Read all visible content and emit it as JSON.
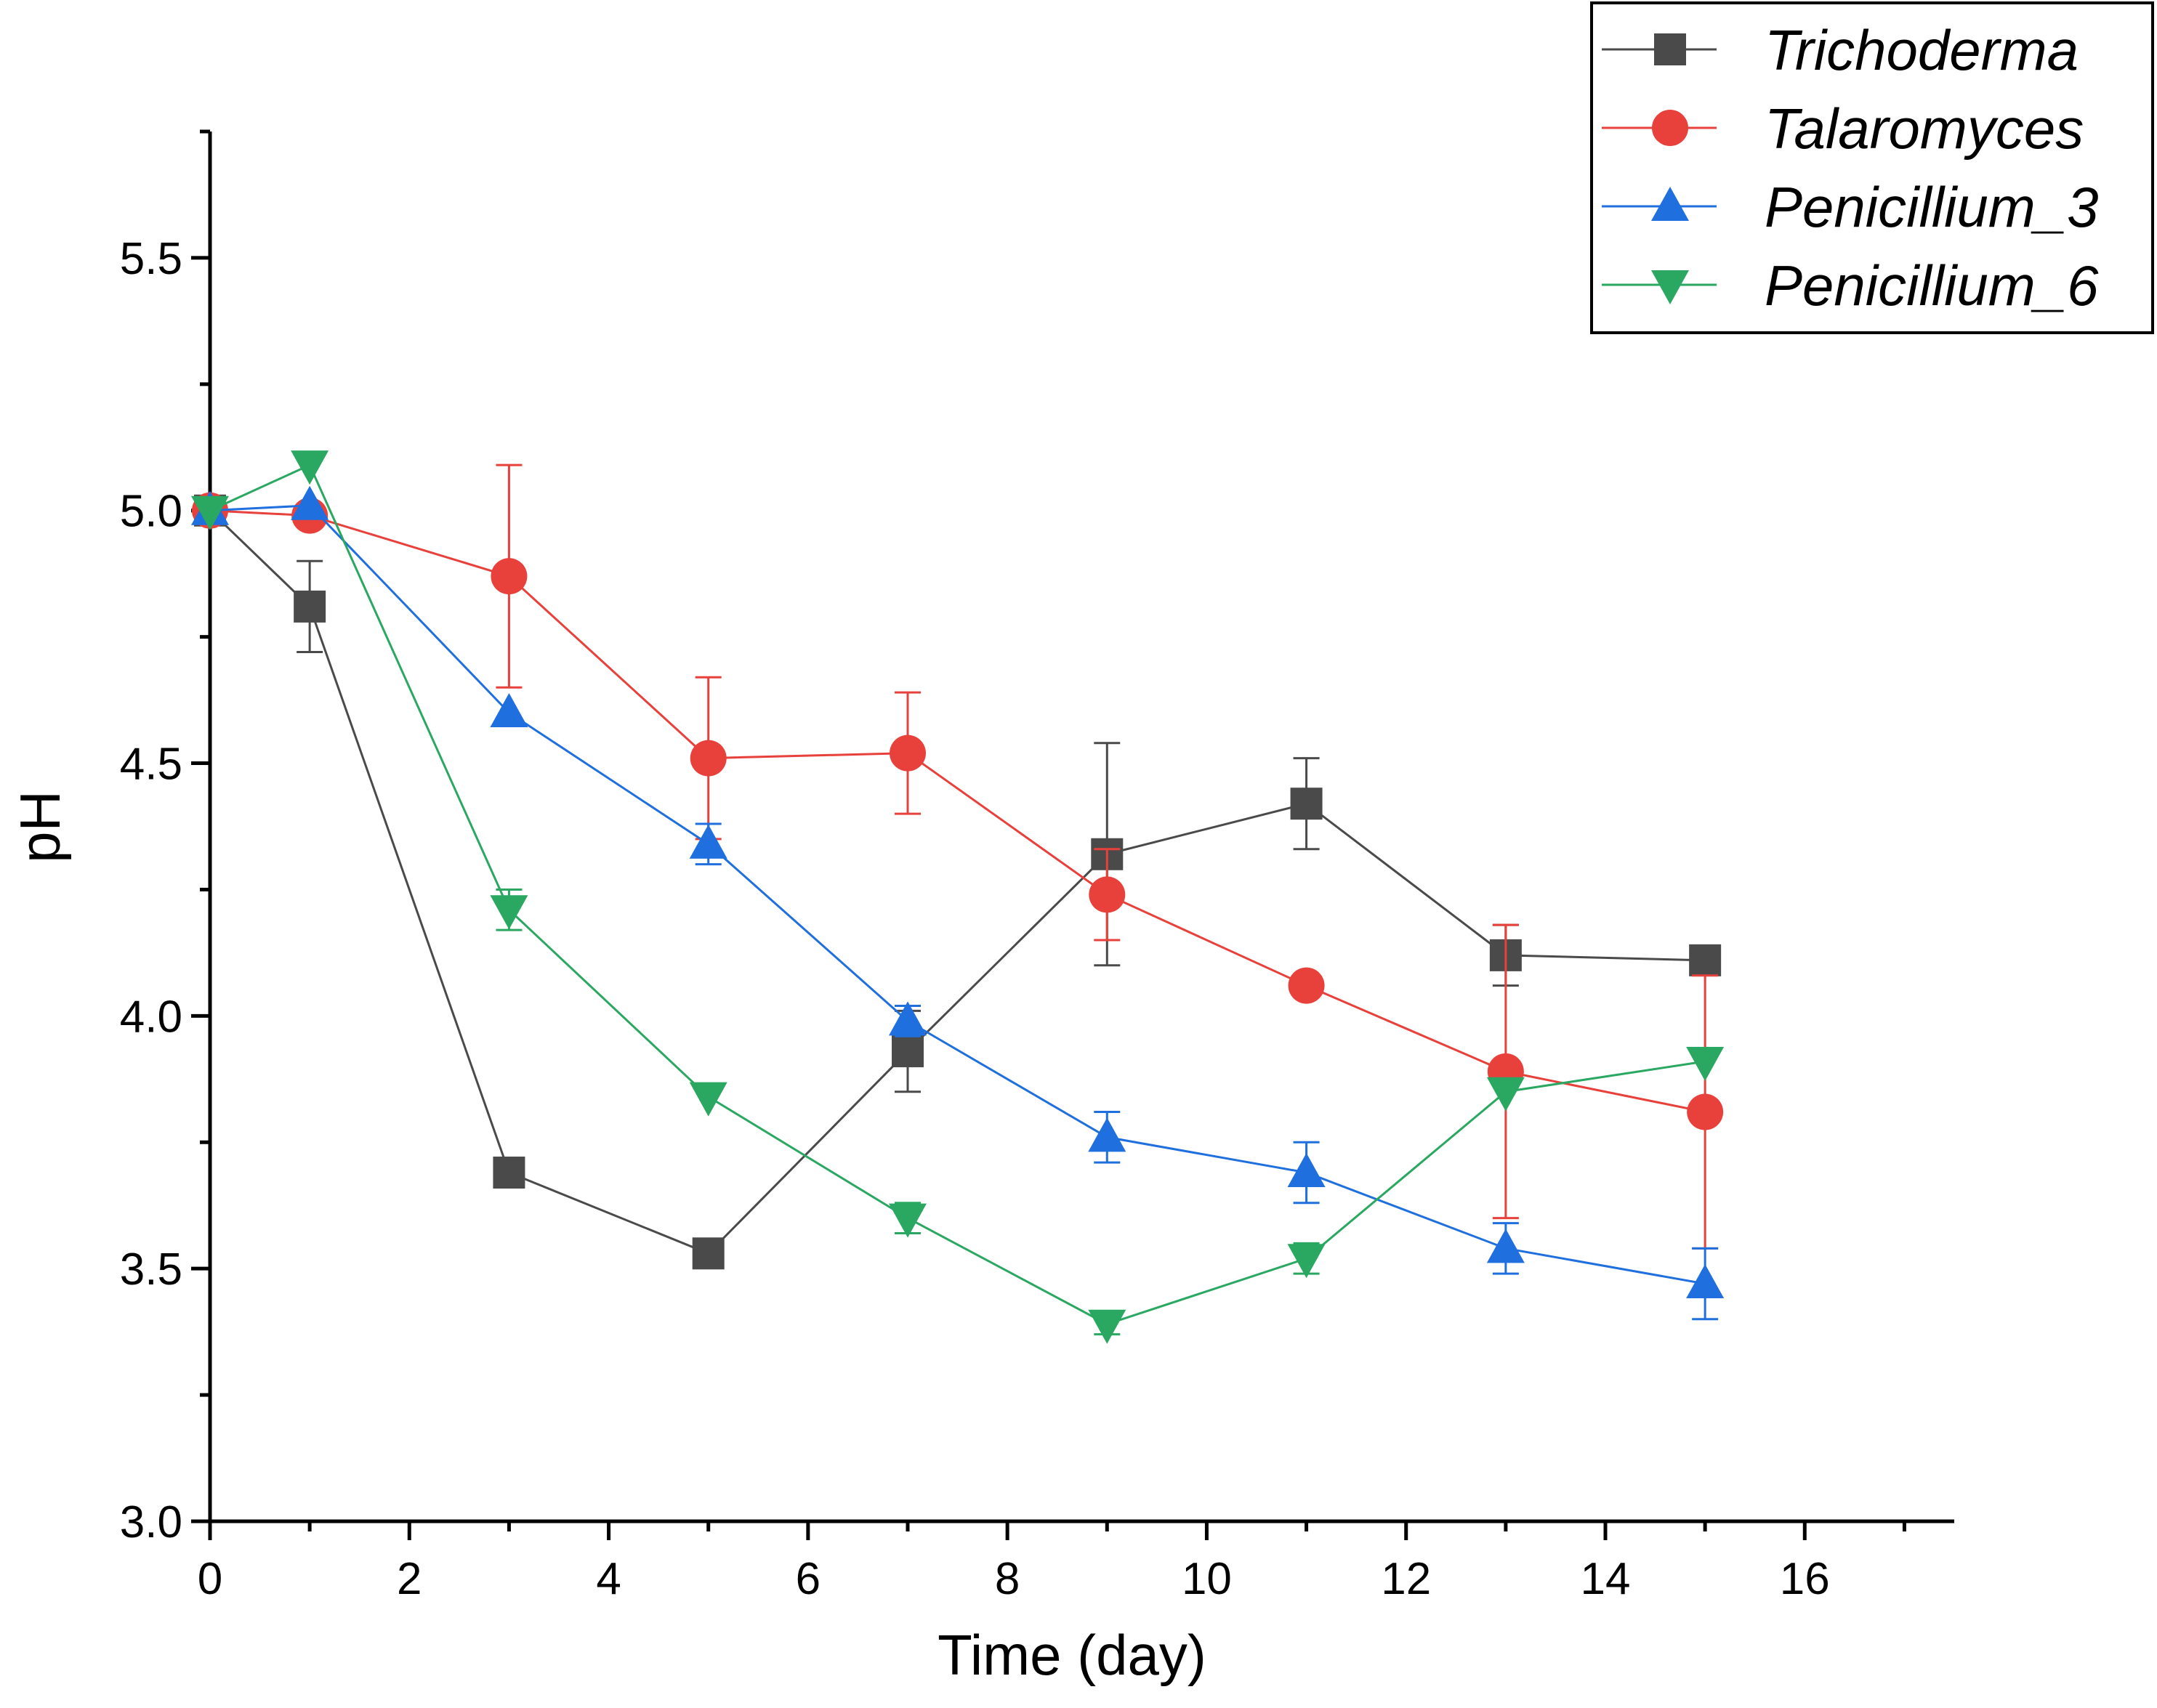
{
  "chart_data": {
    "type": "line",
    "xlabel": "Time (day)",
    "ylabel": "pH",
    "xlim": [
      0,
      17.5
    ],
    "ylim": [
      3.0,
      5.75
    ],
    "x_ticks": [
      0,
      2,
      4,
      6,
      8,
      10,
      12,
      14,
      16
    ],
    "x_tick_labels": [
      "0",
      "2",
      "4",
      "6",
      "8",
      "10",
      "12",
      "14",
      "16"
    ],
    "y_ticks": [
      3.0,
      3.5,
      4.0,
      4.5,
      5.0,
      5.5
    ],
    "y_tick_labels": [
      "3.0",
      "3.5",
      "4.0",
      "4.5",
      "5.0",
      "5.5"
    ],
    "grid": false,
    "legend_position": "top-right",
    "x": [
      0,
      1,
      3,
      5,
      7,
      9,
      11,
      13,
      15
    ],
    "series": [
      {
        "name": "Trichoderma",
        "marker": "square",
        "color": "#4a4a4a",
        "values": [
          5.0,
          4.81,
          3.69,
          3.53,
          3.93,
          4.32,
          4.42,
          4.12,
          4.11
        ],
        "errors": [
          0.0,
          0.09,
          0.0,
          0.0,
          0.08,
          0.22,
          0.09,
          0.06,
          0.0
        ]
      },
      {
        "name": "Talaromyces",
        "marker": "circle",
        "color": "#e8413c",
        "values": [
          5.0,
          4.99,
          4.87,
          4.51,
          4.52,
          4.24,
          4.06,
          3.89,
          3.81
        ],
        "errors": [
          0.0,
          0.0,
          0.22,
          0.16,
          0.12,
          0.09,
          0.0,
          0.29,
          0.27
        ]
      },
      {
        "name": "Penicillium_3",
        "marker": "triangle-up",
        "color": "#1f6fde",
        "values": [
          5.0,
          5.01,
          4.6,
          4.34,
          3.99,
          3.76,
          3.69,
          3.54,
          3.47
        ],
        "errors": [
          0.0,
          0.0,
          0.0,
          0.04,
          0.03,
          0.05,
          0.06,
          0.05,
          0.07
        ]
      },
      {
        "name": "Penicillium_6",
        "marker": "triangle-down",
        "color": "#2aa862",
        "values": [
          5.0,
          5.09,
          4.21,
          3.84,
          3.6,
          3.39,
          3.52,
          3.85,
          3.91
        ],
        "errors": [
          0.0,
          0.0,
          0.04,
          0.0,
          0.03,
          0.02,
          0.03,
          0.0,
          0.0
        ]
      }
    ]
  }
}
